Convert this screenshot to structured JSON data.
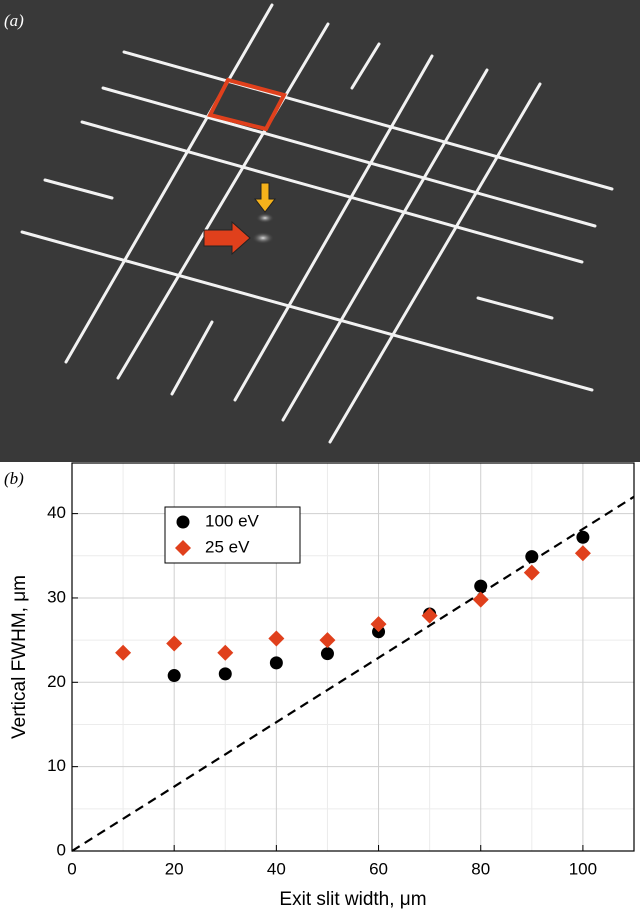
{
  "panel_a_label": "(a)",
  "chart_data": {
    "type": "scatter",
    "panel_label": "(b)",
    "xlabel": "Exit slit width, μm",
    "ylabel": "Vertical FWHM, μm",
    "xlim": [
      0,
      110
    ],
    "ylim": [
      0,
      46
    ],
    "xticks": [
      0,
      20,
      40,
      60,
      80,
      100
    ],
    "yticks": [
      0,
      10,
      20,
      30,
      40
    ],
    "grid": true,
    "legend": "upper left",
    "series": [
      {
        "name": "100 eV",
        "color": "#000000",
        "marker": "circle",
        "x": [
          20,
          30,
          40,
          50,
          60,
          70,
          80,
          90,
          100
        ],
        "values": [
          20.8,
          21.0,
          22.3,
          23.4,
          26.0,
          28.1,
          31.4,
          34.9,
          37.2
        ]
      },
      {
        "name": "25 eV",
        "color": "#e0401c",
        "marker": "diamond",
        "x": [
          10,
          20,
          30,
          40,
          50,
          60,
          70,
          80,
          90,
          100
        ],
        "values": [
          23.5,
          24.6,
          23.5,
          25.2,
          25.0,
          26.9,
          27.9,
          29.8,
          33.0,
          35.3
        ]
      }
    ],
    "reference_line": {
      "x": [
        0,
        110
      ],
      "values": [
        0,
        42
      ],
      "color": "#000000"
    }
  }
}
